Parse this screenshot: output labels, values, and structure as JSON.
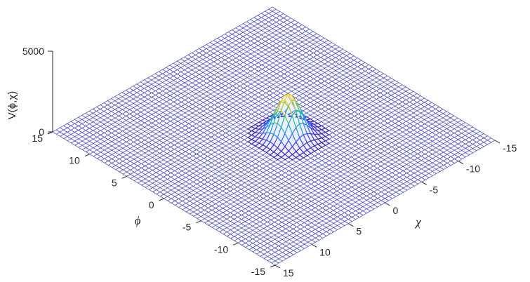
{
  "chart_data": {
    "type": "surface",
    "title": "",
    "xlabel": "χ",
    "ylabel": "ϕ",
    "zlabel": "V(ϕ,χ)",
    "xlim": [
      -15,
      15
    ],
    "ylim": [
      -15,
      15
    ],
    "zlim": [
      0,
      5000
    ],
    "x_ticks": [
      -15,
      -10,
      -5,
      0,
      5,
      10,
      15
    ],
    "y_ticks": [
      -15,
      -10,
      -5,
      0,
      5,
      10,
      15
    ],
    "z_ticks": [
      0,
      5000
    ],
    "x_tick_labels": [
      "-15",
      "-10",
      "-5",
      "0",
      "5",
      "10",
      "15"
    ],
    "y_tick_labels": [
      "-15",
      "-10",
      "-5",
      "0",
      "5",
      "10",
      "15"
    ],
    "z_tick_labels": [
      "0",
      "5000"
    ],
    "grid_points": 61,
    "peak": {
      "x": -1,
      "y": -1,
      "z": 2600,
      "width": 1.2
    },
    "contour_level": 0,
    "colormap": "parula",
    "colors": {
      "mesh": "#4b4fc4",
      "mesh_fill": "#ffffff",
      "contour": "#3b3ba8",
      "axis": "#262626",
      "parula": [
        "#3e26a8",
        "#4748f0",
        "#2f8ef2",
        "#12b1d5",
        "#33c27f",
        "#9dc73a",
        "#f5ba3c",
        "#f9fb15"
      ]
    }
  }
}
